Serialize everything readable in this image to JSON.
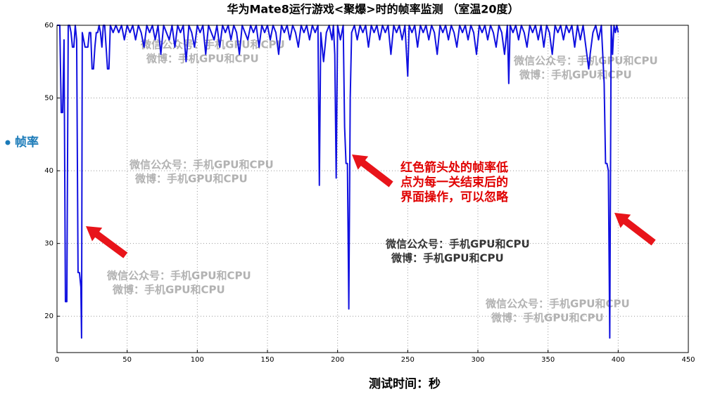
{
  "chart_data": {
    "type": "line",
    "title": "华为Mate8运行游戏<聚爆>时的帧率监测 （室温20度）",
    "x_label": "测试时间：秒",
    "x": [
      0,
      1,
      2,
      3,
      4,
      5,
      6,
      7,
      8,
      9,
      10,
      11,
      12,
      13,
      14,
      15,
      16,
      17,
      17.5,
      18,
      19,
      20,
      21,
      22,
      23,
      24,
      25,
      26,
      27,
      28,
      29,
      30,
      31,
      32,
      33,
      34,
      35,
      36,
      37,
      38,
      40,
      42,
      44,
      46,
      48,
      50,
      52,
      54,
      56,
      58,
      60,
      62,
      64,
      66,
      68,
      70,
      72,
      74,
      76,
      78,
      80,
      82,
      84,
      86,
      88,
      90,
      92,
      94,
      96,
      98,
      100,
      102,
      104,
      106,
      108,
      110,
      112,
      114,
      116,
      118,
      120,
      122,
      124,
      126,
      128,
      130,
      132,
      134,
      136,
      138,
      140,
      142,
      144,
      146,
      148,
      150,
      152,
      154,
      156,
      158,
      160,
      162,
      164,
      166,
      168,
      170,
      172,
      174,
      176,
      178,
      180,
      182,
      184,
      186,
      187,
      188,
      190,
      192,
      194,
      196,
      197,
      198,
      199,
      200,
      202,
      204,
      205,
      206,
      207,
      208,
      209,
      210,
      212,
      214,
      216,
      218,
      220,
      222,
      224,
      226,
      228,
      230,
      232,
      234,
      236,
      238,
      240,
      242,
      244,
      246,
      248,
      250,
      251,
      253,
      255,
      257,
      259,
      261,
      263,
      265,
      267,
      269,
      271,
      273,
      275,
      277,
      279,
      281,
      283,
      285,
      287,
      289,
      291,
      293,
      295,
      297,
      299,
      301,
      303,
      305,
      307,
      309,
      311,
      313,
      315,
      317,
      319,
      321,
      322,
      323,
      325,
      327,
      329,
      331,
      333,
      335,
      337,
      339,
      341,
      343,
      345,
      347,
      349,
      351,
      353,
      355,
      357,
      359,
      361,
      363,
      365,
      367,
      369,
      371,
      373,
      375,
      377,
      379,
      380,
      382,
      384,
      386,
      388,
      389,
      390,
      391,
      392,
      393,
      394,
      395,
      396,
      397,
      398,
      399,
      400
    ],
    "series": [
      {
        "name": "帧率",
        "color": "#1010e0",
        "values": [
          60,
          60,
          60,
          48,
          48,
          58,
          22,
          22,
          60,
          60,
          59,
          57,
          57,
          60,
          58,
          26,
          26,
          24,
          17,
          59,
          58,
          57,
          57,
          57,
          59,
          59,
          54,
          54,
          57,
          59,
          59,
          60,
          59,
          57,
          60,
          60,
          57,
          54,
          54,
          60,
          59,
          60,
          59,
          60,
          58,
          60,
          59,
          60,
          58,
          60,
          59,
          57,
          60,
          59,
          60,
          58,
          60,
          56,
          60,
          59,
          58,
          60,
          57,
          60,
          59,
          60,
          55,
          60,
          59,
          57,
          60,
          59,
          60,
          56,
          60,
          59,
          58,
          60,
          57,
          60,
          59,
          60,
          58,
          60,
          59,
          56,
          60,
          59,
          58,
          60,
          59,
          60,
          57,
          60,
          59,
          60,
          58,
          60,
          59,
          56,
          60,
          59,
          60,
          58,
          60,
          59,
          57,
          60,
          59,
          60,
          58,
          60,
          59,
          60,
          38,
          59,
          55,
          59,
          60,
          58,
          60,
          56,
          39,
          60,
          58,
          60,
          46,
          41,
          41,
          21,
          50,
          59,
          60,
          58,
          60,
          59,
          60,
          57,
          60,
          59,
          60,
          58,
          60,
          59,
          60,
          56,
          60,
          59,
          60,
          58,
          60,
          53,
          60,
          59,
          60,
          57,
          60,
          59,
          60,
          58,
          60,
          59,
          56,
          60,
          59,
          60,
          58,
          60,
          59,
          57,
          60,
          59,
          60,
          58,
          60,
          59,
          56,
          60,
          59,
          60,
          58,
          60,
          59,
          57,
          60,
          59,
          56,
          60,
          52,
          60,
          59,
          60,
          58,
          60,
          59,
          57,
          60,
          59,
          60,
          58,
          60,
          57,
          60,
          59,
          56,
          60,
          59,
          60,
          58,
          60,
          59,
          60,
          57,
          60,
          58,
          60,
          57,
          54,
          56,
          59,
          60,
          58,
          60,
          56,
          52,
          41,
          41,
          40,
          17,
          60,
          56,
          60,
          59,
          60,
          59
        ]
      }
    ],
    "xlim": [
      0,
      450
    ],
    "xticks": [
      0,
      50,
      100,
      150,
      200,
      250,
      300,
      350,
      400,
      450
    ],
    "ylim": [
      15,
      60
    ],
    "yticks": [
      20,
      30,
      40,
      50,
      60
    ],
    "grid": true,
    "annotation": [
      "红色箭头处的帧率低",
      "点为每一关结束后的",
      "界面操作，可以忽略"
    ],
    "watermark": [
      "微信公众号：手机GPU和CPU",
      "微博：手机GPU和CPU"
    ]
  }
}
